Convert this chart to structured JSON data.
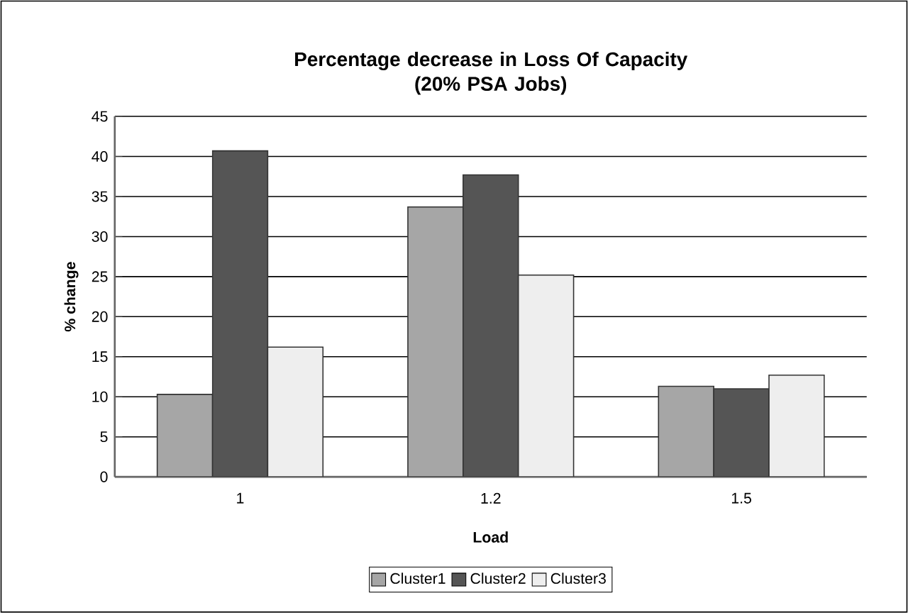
{
  "chart_data": {
    "type": "bar",
    "title": "Percentage decrease in Loss Of Capacity\n(20% PSA Jobs)",
    "xlabel": "Load",
    "ylabel": "% change",
    "categories": [
      "1",
      "1.2",
      "1.5"
    ],
    "series": [
      {
        "name": "Cluster1",
        "color": "#a6a6a6",
        "values": [
          10.3,
          33.7,
          11.3
        ]
      },
      {
        "name": "Cluster2",
        "color": "#555555",
        "values": [
          40.7,
          37.7,
          11.0
        ]
      },
      {
        "name": "Cluster3",
        "color": "#eeeeee",
        "values": [
          16.2,
          25.2,
          12.7
        ]
      }
    ],
    "ylim": [
      0,
      45
    ],
    "yticks": [
      0,
      5,
      10,
      15,
      20,
      25,
      30,
      35,
      40,
      45
    ],
    "grid": "y",
    "legend": "bottom"
  }
}
